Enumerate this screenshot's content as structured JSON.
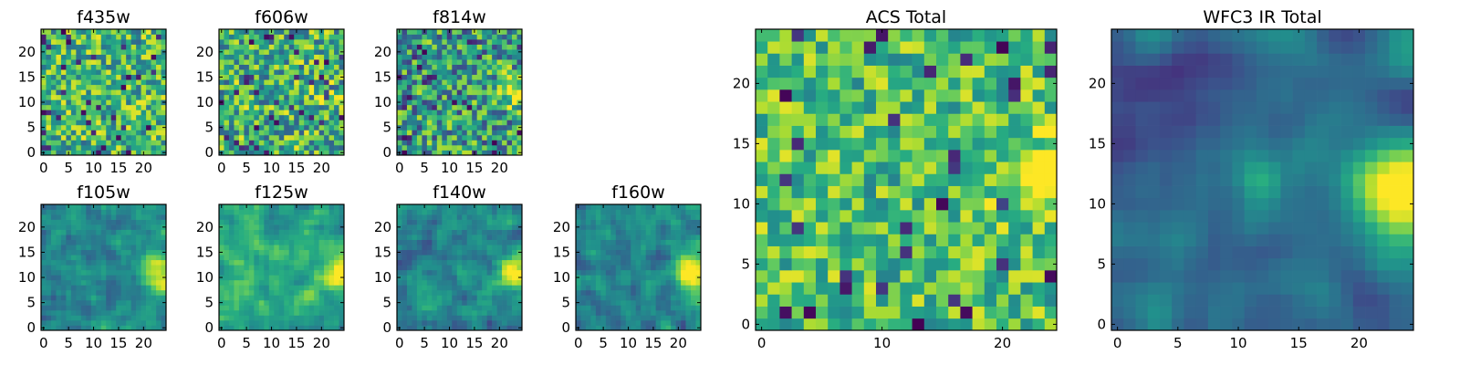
{
  "chart_data": [
    {
      "id": "f435w",
      "type": "heatmap",
      "title": "f435w",
      "grid_size": 25,
      "xlim": [
        0,
        24
      ],
      "ylim": [
        0,
        24
      ],
      "xticks": [
        "0",
        "5",
        "10",
        "15",
        "20"
      ],
      "yticks": [
        "0",
        "5",
        "10",
        "15",
        "20"
      ],
      "colormap": "viridis",
      "pattern": "uniform noise, mostly yellow-green, no hotspot"
    },
    {
      "id": "f606w",
      "type": "heatmap",
      "title": "f606w",
      "grid_size": 25,
      "xlim": [
        0,
        24
      ],
      "ylim": [
        0,
        24
      ],
      "xticks": [
        "0",
        "5",
        "10",
        "15",
        "20"
      ],
      "yticks": [
        "0",
        "5",
        "10",
        "15",
        "20"
      ],
      "colormap": "viridis",
      "pattern": "noise with faint bright spot at right edge near y=12"
    },
    {
      "id": "f814w",
      "type": "heatmap",
      "title": "f814w",
      "grid_size": 25,
      "xlim": [
        0,
        24
      ],
      "ylim": [
        0,
        24
      ],
      "xticks": [
        "0",
        "5",
        "10",
        "15",
        "20"
      ],
      "yticks": [
        "0",
        "5",
        "10",
        "15",
        "20"
      ],
      "colormap": "viridis",
      "pattern": "noise with bright spot at right edge near y=12"
    },
    {
      "id": "f105w",
      "type": "heatmap",
      "title": "f105w",
      "grid_size": 25,
      "xlim": [
        0,
        24
      ],
      "ylim": [
        0,
        24
      ],
      "xticks": [
        "0",
        "5",
        "10",
        "15",
        "20"
      ],
      "yticks": [
        "0",
        "5",
        "10",
        "15",
        "20"
      ],
      "colormap": "viridis",
      "pattern": "smooth, teal-green, yellow hotspot at right edge near y=11"
    },
    {
      "id": "f125w",
      "type": "heatmap",
      "title": "f125w",
      "grid_size": 25,
      "xlim": [
        0,
        24
      ],
      "ylim": [
        0,
        24
      ],
      "xticks": [
        "0",
        "5",
        "10",
        "15",
        "20"
      ],
      "yticks": [
        "0",
        "5",
        "10",
        "15",
        "20"
      ],
      "colormap": "viridis",
      "pattern": "smooth, green, yellow hotspot at right edge near y=11"
    },
    {
      "id": "f140w",
      "type": "heatmap",
      "title": "f140w",
      "grid_size": 25,
      "xlim": [
        0,
        24
      ],
      "ylim": [
        0,
        24
      ],
      "xticks": [
        "0",
        "5",
        "10",
        "15",
        "20"
      ],
      "yticks": [
        "0",
        "5",
        "10",
        "15",
        "20"
      ],
      "colormap": "viridis",
      "pattern": "smooth, teal, yellow hotspot at right edge near y=11"
    },
    {
      "id": "f160w",
      "type": "heatmap",
      "title": "f160w",
      "grid_size": 25,
      "xlim": [
        0,
        24
      ],
      "ylim": [
        0,
        24
      ],
      "xticks": [
        "0",
        "5",
        "10",
        "15",
        "20"
      ],
      "yticks": [
        "0",
        "5",
        "10",
        "15",
        "20"
      ],
      "colormap": "viridis",
      "pattern": "smooth, teal, yellow hotspot at right edge near y=11"
    },
    {
      "id": "acs_total",
      "type": "heatmap",
      "title": "ACS Total",
      "grid_size": 25,
      "xlim": [
        0,
        24
      ],
      "ylim": [
        0,
        24
      ],
      "xticks": [
        "0",
        "10",
        "20"
      ],
      "yticks": [
        "0",
        "5",
        "10",
        "15",
        "20"
      ],
      "colormap": "viridis",
      "pattern": "noisy green, yellow hotspot at x=23, y=12"
    },
    {
      "id": "wfc3_ir_total",
      "type": "heatmap",
      "title": "WFC3 IR Total",
      "grid_size": 25,
      "xlim": [
        0,
        24
      ],
      "ylim": [
        0,
        24
      ],
      "xticks": [
        "0",
        "5",
        "10",
        "15",
        "20"
      ],
      "yticks": [
        "0",
        "5",
        "10",
        "15",
        "20"
      ],
      "colormap": "viridis",
      "pattern": "smooth, dark teal, yellow hotspot at x=23, y=11, secondary at x=12, y=12, dark region top-left"
    }
  ],
  "colors": {
    "viridis_stops": [
      "#440154",
      "#3b528b",
      "#21918c",
      "#5ec962",
      "#fde725"
    ]
  }
}
